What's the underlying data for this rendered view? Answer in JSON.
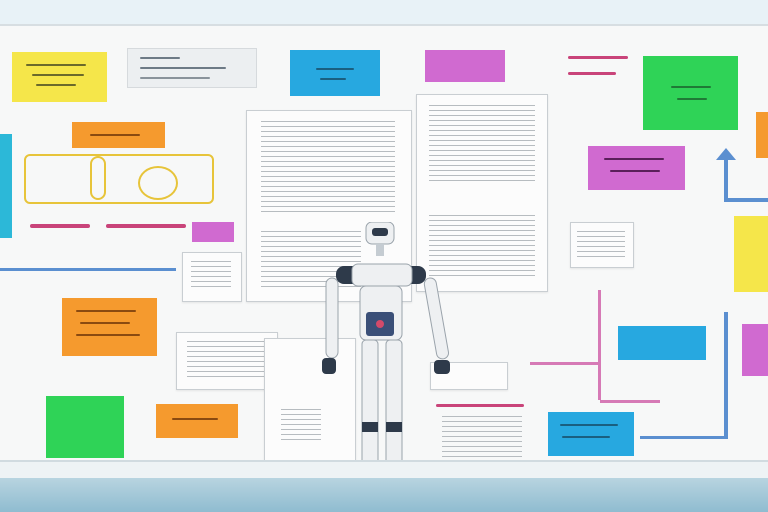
{
  "scene": {
    "colors": {
      "wall": "#dfeaf0",
      "board": "#f7f8f8",
      "yellow": "#f5e64a",
      "orange": "#f59a2e",
      "green": "#2fd357",
      "blue": "#27a8e0",
      "magenta": "#d06ad0",
      "pink": "#e06aa8",
      "robot_white": "#eef0f2",
      "robot_dark": "#2e3a4a"
    },
    "notes": [
      {
        "name": "yellow-note-top-left",
        "color": "yellow"
      },
      {
        "name": "gray-card-top",
        "color": "board"
      },
      {
        "name": "blue-note-top",
        "color": "blue"
      },
      {
        "name": "magenta-note-top",
        "color": "magenta"
      },
      {
        "name": "green-note-top-right",
        "color": "green"
      },
      {
        "name": "orange-note-upper-left",
        "color": "orange"
      },
      {
        "name": "orange-note-mid-left",
        "color": "orange"
      },
      {
        "name": "green-note-bottom-left",
        "color": "green"
      },
      {
        "name": "orange-note-bottom",
        "color": "orange"
      },
      {
        "name": "magenta-note-right",
        "color": "magenta"
      },
      {
        "name": "blue-note-right",
        "color": "blue"
      },
      {
        "name": "blue-note-bottom-right",
        "color": "blue"
      },
      {
        "name": "yellow-note-right-edge",
        "color": "yellow"
      },
      {
        "name": "magenta-note-right-edge",
        "color": "magenta"
      }
    ],
    "icons": [
      "robot-icon",
      "arrow-up-icon"
    ]
  }
}
